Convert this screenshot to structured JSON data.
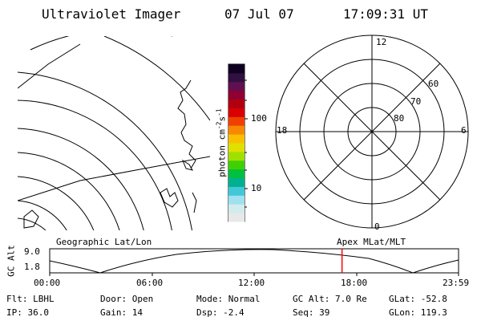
{
  "header": {
    "instrument": "Ultraviolet Imager",
    "date": "07 Jul 07",
    "time": "17:09:31 UT"
  },
  "colorbar": {
    "unit_label": "photon cm",
    "unit_exp1": "-2",
    "unit_s": "s",
    "unit_exp2": "-1",
    "tick_100": "100",
    "tick_10": "10",
    "colors": [
      "#e8e8e8",
      "#d0ecec",
      "#a0e0f0",
      "#40c8d8",
      "#00b090",
      "#00c040",
      "#40d000",
      "#a0e000",
      "#e0e000",
      "#f8c000",
      "#f88800",
      "#f04000",
      "#d80000",
      "#b00010",
      "#900030",
      "#601050",
      "#301040",
      "#100020"
    ]
  },
  "polar": {
    "mlt_labels": [
      "12",
      "18",
      "6",
      "0"
    ],
    "lat_labels": [
      "60",
      "70",
      "80"
    ]
  },
  "map_label": "Geographic Lat/Lon",
  "polar_label": "Apex MLat/MLT",
  "altitude_plot": {
    "ylabel": "GC Alt",
    "y_ticks": [
      "9.0",
      "1.8"
    ],
    "x_ticks": [
      "00:00",
      "06:00",
      "12:00",
      "18:00",
      "23:59"
    ],
    "marker_time_hours": 17.16,
    "marker_color": "#ff0000"
  },
  "info": {
    "row1": [
      {
        "label": "Flt:",
        "value": "LBHL"
      },
      {
        "label": "Door:",
        "value": "Open"
      },
      {
        "label": "Mode:",
        "value": "Normal"
      },
      {
        "label": "GC Alt:",
        "value": "7.0 Re"
      },
      {
        "label": "GLat:",
        "value": "-52.8"
      }
    ],
    "row2": [
      {
        "label": "IP:",
        "value": "36.0"
      },
      {
        "label": "Gain:",
        "value": "14"
      },
      {
        "label": "Dsp:",
        "value": "-2.4"
      },
      {
        "label": "Seq:",
        "value": "39"
      },
      {
        "label": "GLon:",
        "value": "119.3"
      }
    ]
  }
}
